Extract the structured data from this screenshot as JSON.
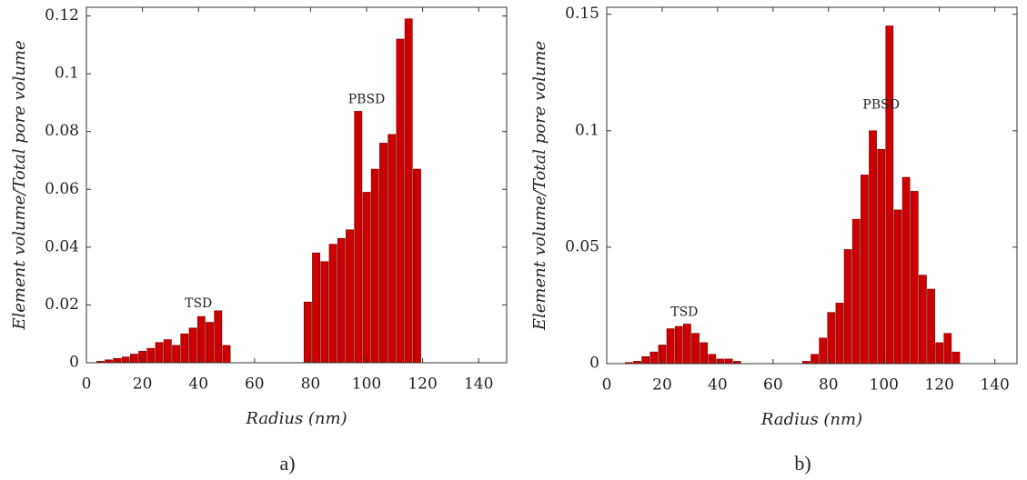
{
  "chart_data": [
    {
      "type": "bar",
      "caption": "a)",
      "x_label": "Radius (nm)",
      "y_label": "Element volume/Total pore volume",
      "annotations": [
        "TSD",
        "PBSD"
      ],
      "color": "#cc0000",
      "bar_width": 3,
      "x": [
        5,
        8,
        11,
        14,
        17,
        20,
        23,
        26,
        29,
        32,
        35,
        38,
        41,
        44,
        47,
        50,
        79,
        82,
        85,
        88,
        91,
        94,
        97,
        100,
        103,
        106,
        109,
        112,
        115,
        118
      ],
      "values": [
        0.0005,
        0.001,
        0.0015,
        0.002,
        0.003,
        0.004,
        0.005,
        0.007,
        0.008,
        0.006,
        0.01,
        0.012,
        0.016,
        0.014,
        0.018,
        0.006,
        0.021,
        0.038,
        0.035,
        0.041,
        0.043,
        0.046,
        0.087,
        0.059,
        0.067,
        0.076,
        0.079,
        0.112,
        0.119,
        0.067
      ],
      "xlim": [
        0,
        150
      ],
      "xticks": [
        0,
        20,
        40,
        60,
        80,
        100,
        120,
        140
      ],
      "ylim": [
        0,
        0.123
      ],
      "yticks": [
        0,
        0.02,
        0.04,
        0.06,
        0.08,
        0.1,
        0.12
      ]
    },
    {
      "type": "bar",
      "caption": "b)",
      "x_label": "Radius (nm)",
      "y_label": "Element volume/Total pore volume",
      "annotations": [
        "TSD",
        "PBSD"
      ],
      "color": "#cc0000",
      "bar_width": 3,
      "x": [
        8,
        11,
        14,
        17,
        20,
        23,
        26,
        29,
        32,
        35,
        38,
        41,
        44,
        47,
        72,
        75,
        78,
        81,
        84,
        87,
        90,
        93,
        96,
        99,
        102,
        105,
        108,
        111,
        114,
        117,
        120,
        123,
        126
      ],
      "values": [
        0.0005,
        0.001,
        0.003,
        0.005,
        0.008,
        0.015,
        0.016,
        0.017,
        0.013,
        0.009,
        0.004,
        0.002,
        0.002,
        0.001,
        0.001,
        0.004,
        0.011,
        0.022,
        0.026,
        0.049,
        0.062,
        0.081,
        0.1,
        0.092,
        0.145,
        0.066,
        0.08,
        0.074,
        0.038,
        0.032,
        0.009,
        0.013,
        0.005
      ],
      "xlim": [
        0,
        148
      ],
      "xticks": [
        0,
        20,
        40,
        60,
        80,
        100,
        120,
        140
      ],
      "ylim": [
        0,
        0.153
      ],
      "yticks": [
        0,
        0.05,
        0.1,
        0.15
      ]
    }
  ]
}
